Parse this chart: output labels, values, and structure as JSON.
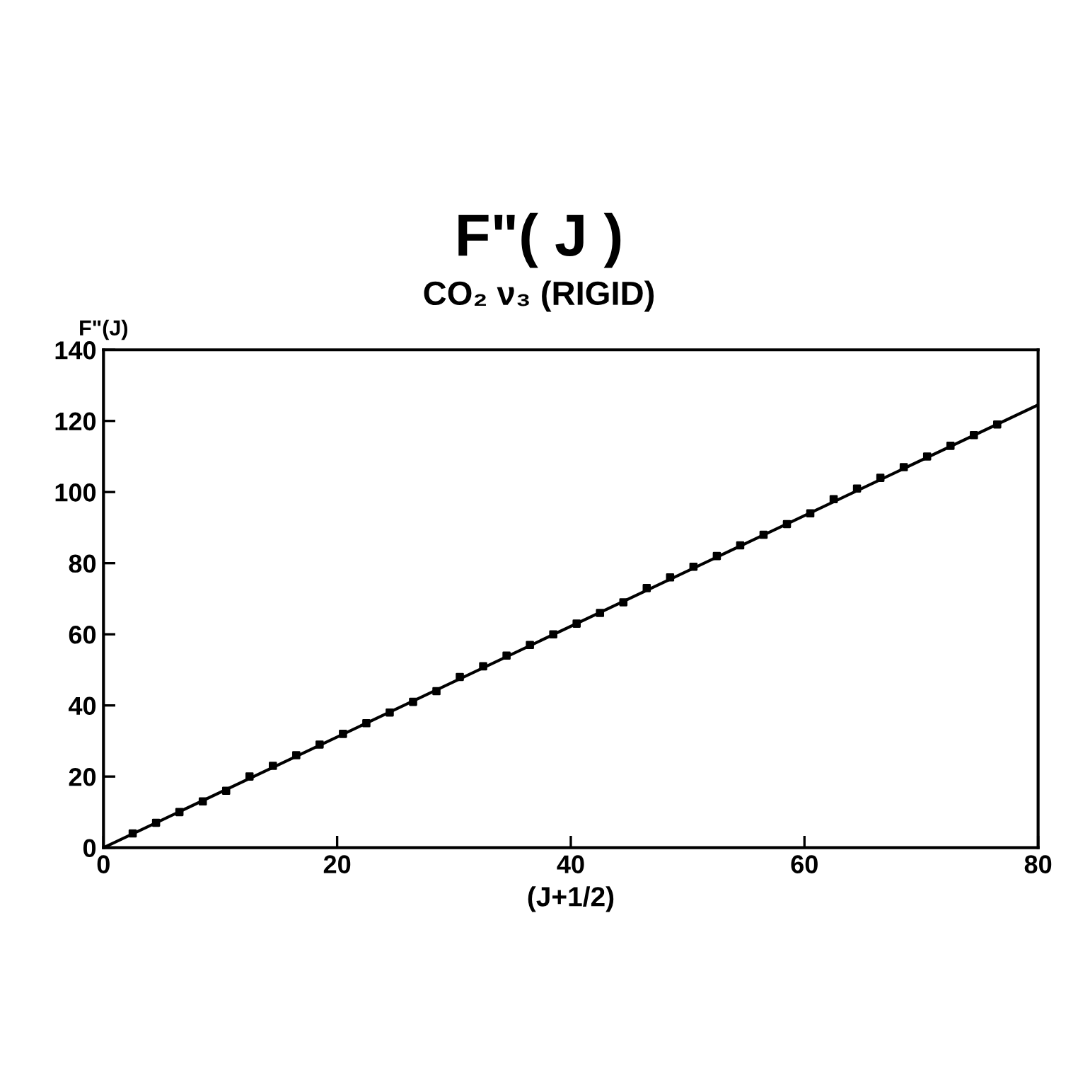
{
  "chart_data": {
    "type": "scatter",
    "title": "F\"( J )",
    "subtitle": "CO₂ ν₃ (RIGID)",
    "xlabel": "(J+1/2)",
    "ylabel": "F\"(J)",
    "xlim": [
      0,
      80
    ],
    "ylim": [
      0,
      140
    ],
    "xticks": [
      0,
      20,
      40,
      60,
      80
    ],
    "yticks": [
      0,
      20,
      40,
      60,
      80,
      100,
      120,
      140
    ],
    "grid": false,
    "legend": false,
    "series": [
      {
        "color": "#000000",
        "marker": "square",
        "x": [
          2.5,
          4.5,
          6.5,
          8.5,
          10.5,
          12.5,
          14.5,
          16.5,
          18.5,
          20.5,
          22.5,
          24.5,
          26.5,
          28.5,
          30.5,
          32.5,
          34.5,
          36.5,
          38.5,
          40.5,
          42.5,
          44.5,
          46.5,
          48.5,
          50.5,
          52.5,
          54.5,
          56.5,
          58.5,
          60.5,
          62.5,
          64.5,
          66.5,
          68.5,
          70.5,
          72.5,
          74.5,
          76.5
        ],
        "values": [
          4,
          7,
          10,
          13,
          16,
          20,
          23,
          26,
          29,
          32,
          35,
          38,
          41,
          44,
          48,
          51,
          54,
          57,
          60,
          63,
          66,
          69,
          73,
          76,
          79,
          82,
          85,
          88,
          91,
          94,
          98,
          101,
          104,
          107,
          110,
          113,
          116,
          119
        ]
      },
      {
        "type": "line",
        "color": "#000000",
        "line_style": "solid",
        "x": [
          0,
          80
        ],
        "values": [
          0,
          124.5
        ]
      }
    ]
  }
}
